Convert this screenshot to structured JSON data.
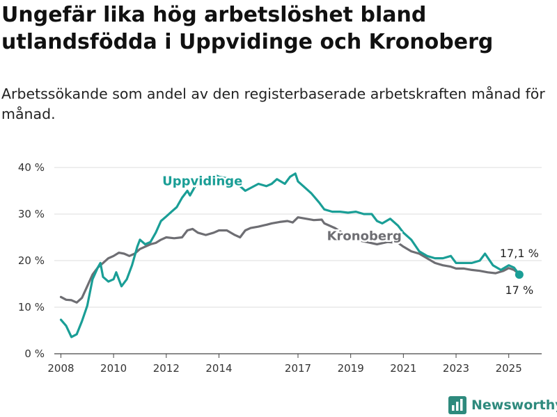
{
  "title": "Ungefär lika hög arbetslöshet bland utlandsfödda i Uppvidinge och Kronoberg",
  "subtitle": "Arbetssökande som andel av den registerbaserade arbetskraften månad för månad.",
  "brand": "Newsworthy",
  "colors": {
    "uppvidinge": "#1a9e96",
    "kronoberg": "#6e6e73",
    "grid": "#dcdcdc",
    "brand": "#2e8a7d"
  },
  "chart_data": {
    "type": "line",
    "title": "Ungefär lika hög arbetslöshet bland utlandsfödda i Uppvidinge och Kronoberg",
    "subtitle": "Arbetssökande som andel av den registerbaserade arbetskraften månad för månad.",
    "x_unit": "year",
    "ylim": [
      0,
      40
    ],
    "xlim": [
      2007.75,
      2026.25
    ],
    "yticks": [
      0,
      10,
      20,
      30,
      40
    ],
    "ytick_labels": [
      "0 %",
      "10 %",
      "20 %",
      "30 %",
      "40 %"
    ],
    "xticks": [
      2008,
      2010,
      2012,
      2014,
      2017,
      2019,
      2021,
      2023,
      2025
    ],
    "xtick_labels": [
      "2008",
      "2010",
      "2012",
      "2014",
      "2017",
      "2019",
      "2021",
      "2023",
      "2025"
    ],
    "grid": true,
    "legend": "direct labels",
    "series": [
      {
        "name": "Uppvidinge",
        "end_label": "17 %",
        "x": [
          2008.0,
          2008.2,
          2008.4,
          2008.6,
          2008.8,
          2009.0,
          2009.2,
          2009.4,
          2009.5,
          2009.6,
          2009.8,
          2010.0,
          2010.1,
          2010.3,
          2010.5,
          2010.7,
          2010.9,
          2011.0,
          2011.2,
          2011.4,
          2011.6,
          2011.8,
          2012.0,
          2012.2,
          2012.4,
          2012.6,
          2012.8,
          2012.9,
          2013.1,
          2013.4,
          2013.7,
          2013.9,
          2014.0,
          2014.5,
          2015.0,
          2015.5,
          2015.8,
          2016.0,
          2016.2,
          2016.5,
          2016.7,
          2016.9,
          2017.0,
          2017.2,
          2017.5,
          2017.8,
          2018.0,
          2018.3,
          2018.6,
          2018.9,
          2019.2,
          2019.5,
          2019.8,
          2020.0,
          2020.2,
          2020.5,
          2020.8,
          2021.0,
          2021.3,
          2021.6,
          2021.9,
          2022.2,
          2022.5,
          2022.8,
          2023.0,
          2023.3,
          2023.6,
          2023.9,
          2024.1,
          2024.4,
          2024.7,
          2025.0,
          2025.2,
          2025.4
        ],
        "values": [
          7.3,
          6.0,
          3.6,
          4.2,
          7.0,
          10.3,
          16.0,
          18.5,
          19.5,
          16.5,
          15.5,
          16.0,
          17.5,
          14.5,
          16.0,
          19.0,
          23.0,
          24.5,
          23.5,
          24.0,
          26.0,
          28.5,
          29.5,
          30.5,
          31.5,
          33.5,
          35.0,
          34.0,
          36.0,
          37.5,
          38.0,
          38.3,
          38.0,
          37.5,
          35.0,
          36.5,
          36.0,
          36.5,
          37.5,
          36.5,
          38.0,
          38.7,
          37.0,
          36.0,
          34.5,
          32.5,
          31.0,
          30.5,
          30.5,
          30.3,
          30.5,
          30.0,
          30.0,
          28.5,
          28.0,
          29.0,
          27.5,
          26.0,
          24.5,
          22.0,
          21.0,
          20.5,
          20.5,
          21.0,
          19.5,
          19.5,
          19.5,
          20.0,
          21.5,
          19.0,
          18.0,
          19.0,
          18.5,
          17.0
        ]
      },
      {
        "name": "Kronoberg",
        "end_label": "17,1 %",
        "x": [
          2008.0,
          2008.2,
          2008.4,
          2008.6,
          2008.8,
          2009.0,
          2009.2,
          2009.4,
          2009.6,
          2009.8,
          2010.0,
          2010.2,
          2010.4,
          2010.6,
          2010.8,
          2011.0,
          2011.2,
          2011.4,
          2011.6,
          2011.8,
          2012.0,
          2012.3,
          2012.6,
          2012.8,
          2013.0,
          2013.2,
          2013.5,
          2013.8,
          2014.0,
          2014.3,
          2014.6,
          2014.8,
          2015.0,
          2015.2,
          2015.5,
          2015.8,
          2016.0,
          2016.3,
          2016.6,
          2016.8,
          2017.0,
          2017.3,
          2017.6,
          2017.9,
          2018.0,
          2018.4,
          2018.8,
          2019.2,
          2019.6,
          2020.0,
          2020.4,
          2020.8,
          2021.0,
          2021.3,
          2021.6,
          2021.9,
          2022.2,
          2022.5,
          2022.8,
          2023.0,
          2023.3,
          2023.6,
          2023.9,
          2024.2,
          2024.5,
          2024.8,
          2025.0,
          2025.2,
          2025.4
        ],
        "values": [
          12.2,
          11.6,
          11.5,
          11.0,
          12.0,
          14.5,
          17.0,
          18.5,
          19.5,
          20.5,
          21.0,
          21.7,
          21.5,
          21.0,
          21.5,
          22.5,
          23.0,
          23.5,
          23.8,
          24.5,
          25.0,
          24.8,
          25.0,
          26.5,
          26.8,
          26.0,
          25.5,
          26.0,
          26.5,
          26.5,
          25.5,
          25.0,
          26.5,
          27.0,
          27.3,
          27.7,
          28.0,
          28.3,
          28.5,
          28.2,
          29.3,
          29.0,
          28.7,
          28.8,
          28.0,
          27.0,
          25.5,
          24.5,
          24.0,
          23.5,
          24.0,
          23.8,
          23.0,
          22.0,
          21.5,
          20.5,
          19.5,
          19.0,
          18.7,
          18.3,
          18.3,
          18.0,
          17.8,
          17.5,
          17.3,
          17.8,
          18.4,
          18.0,
          17.1
        ]
      }
    ]
  }
}
